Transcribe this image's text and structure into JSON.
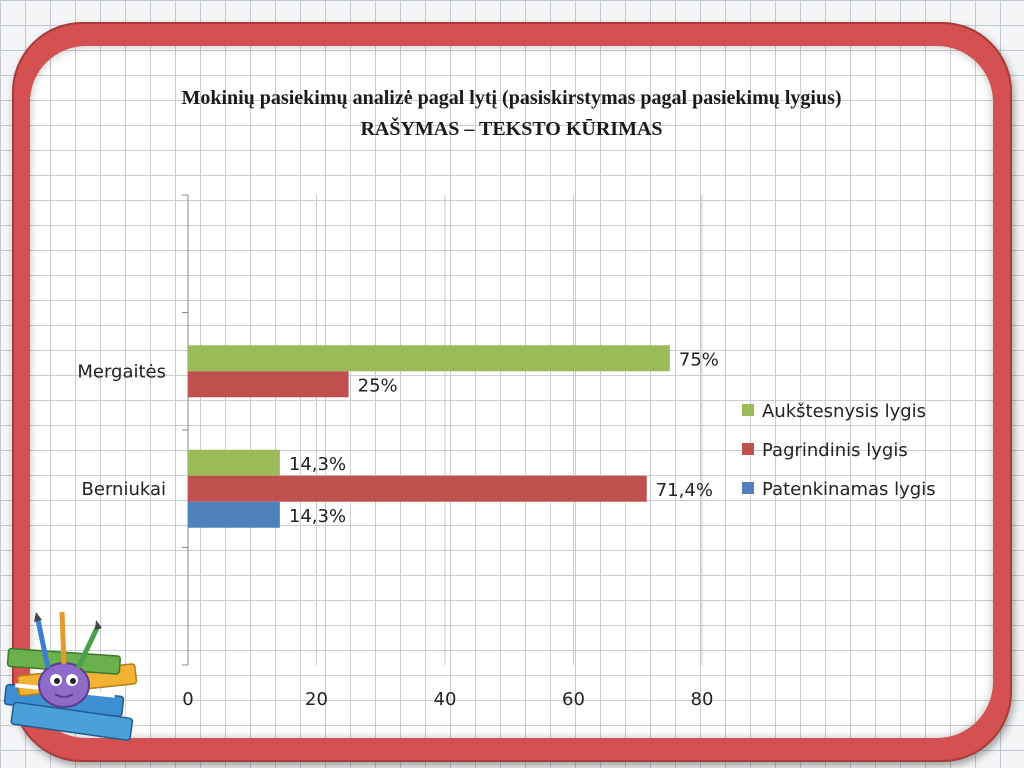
{
  "header": {
    "title_line1": "Mokinių pasiekimų analizė pagal lytį (pasiskirstymas pagal pasiekimų lygius)",
    "title_line2": "RAŠYMAS – TEKSTO KŪRIMAS"
  },
  "chart_data": {
    "type": "bar",
    "orientation": "horizontal",
    "categories": [
      "Mergaitės",
      "Berniukai"
    ],
    "series": [
      {
        "name": "Aukštesnysis lygis",
        "color": "#9bbb59",
        "values": [
          75,
          14.3
        ],
        "labels": [
          "75%",
          "14,3%"
        ]
      },
      {
        "name": "Pagrindinis lygis",
        "color": "#c0504d",
        "values": [
          25,
          71.4
        ],
        "labels": [
          "25%",
          "71,4%"
        ]
      },
      {
        "name": "Patenkinamas lygis",
        "color": "#4f81bd",
        "values": [
          null,
          14.3
        ],
        "labels": [
          null,
          "14,3%"
        ]
      }
    ],
    "xlim": [
      0,
      80
    ],
    "xticks": [
      "0",
      "20",
      "40",
      "60",
      "80"
    ],
    "grid": "vertical",
    "legend": "right"
  },
  "decor": {
    "icon": "pencil-and-books-icon"
  }
}
